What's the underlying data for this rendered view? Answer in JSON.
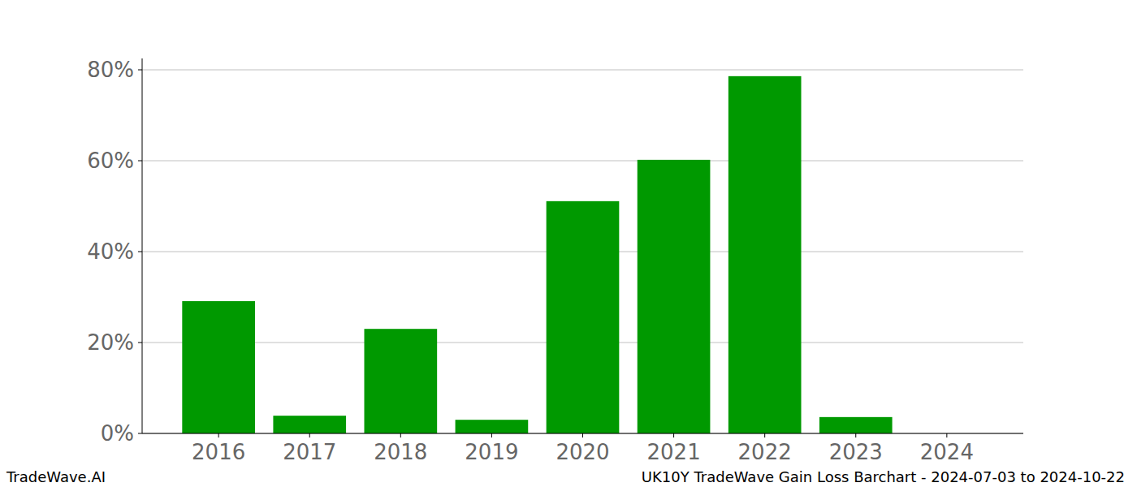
{
  "chart_data": {
    "type": "bar",
    "title": "UK10Y TradeWave Gain Loss Barchart - 2024-07-03 to 2024-10-22",
    "source": "TradeWave.AI",
    "categories": [
      "2016",
      "2017",
      "2018",
      "2019",
      "2020",
      "2021",
      "2022",
      "2023",
      "2024"
    ],
    "values": [
      29.1,
      3.9,
      23.0,
      3.0,
      51.1,
      60.2,
      78.6,
      3.6,
      0
    ],
    "color": "#009900",
    "ylim": [
      0,
      82.5
    ],
    "yticks": [
      {
        "value": 0,
        "label": "0%"
      },
      {
        "value": 20,
        "label": "20%"
      },
      {
        "value": 40,
        "label": "40%"
      },
      {
        "value": 60,
        "label": "60%"
      },
      {
        "value": 80,
        "label": "80%"
      }
    ],
    "grid": true
  }
}
